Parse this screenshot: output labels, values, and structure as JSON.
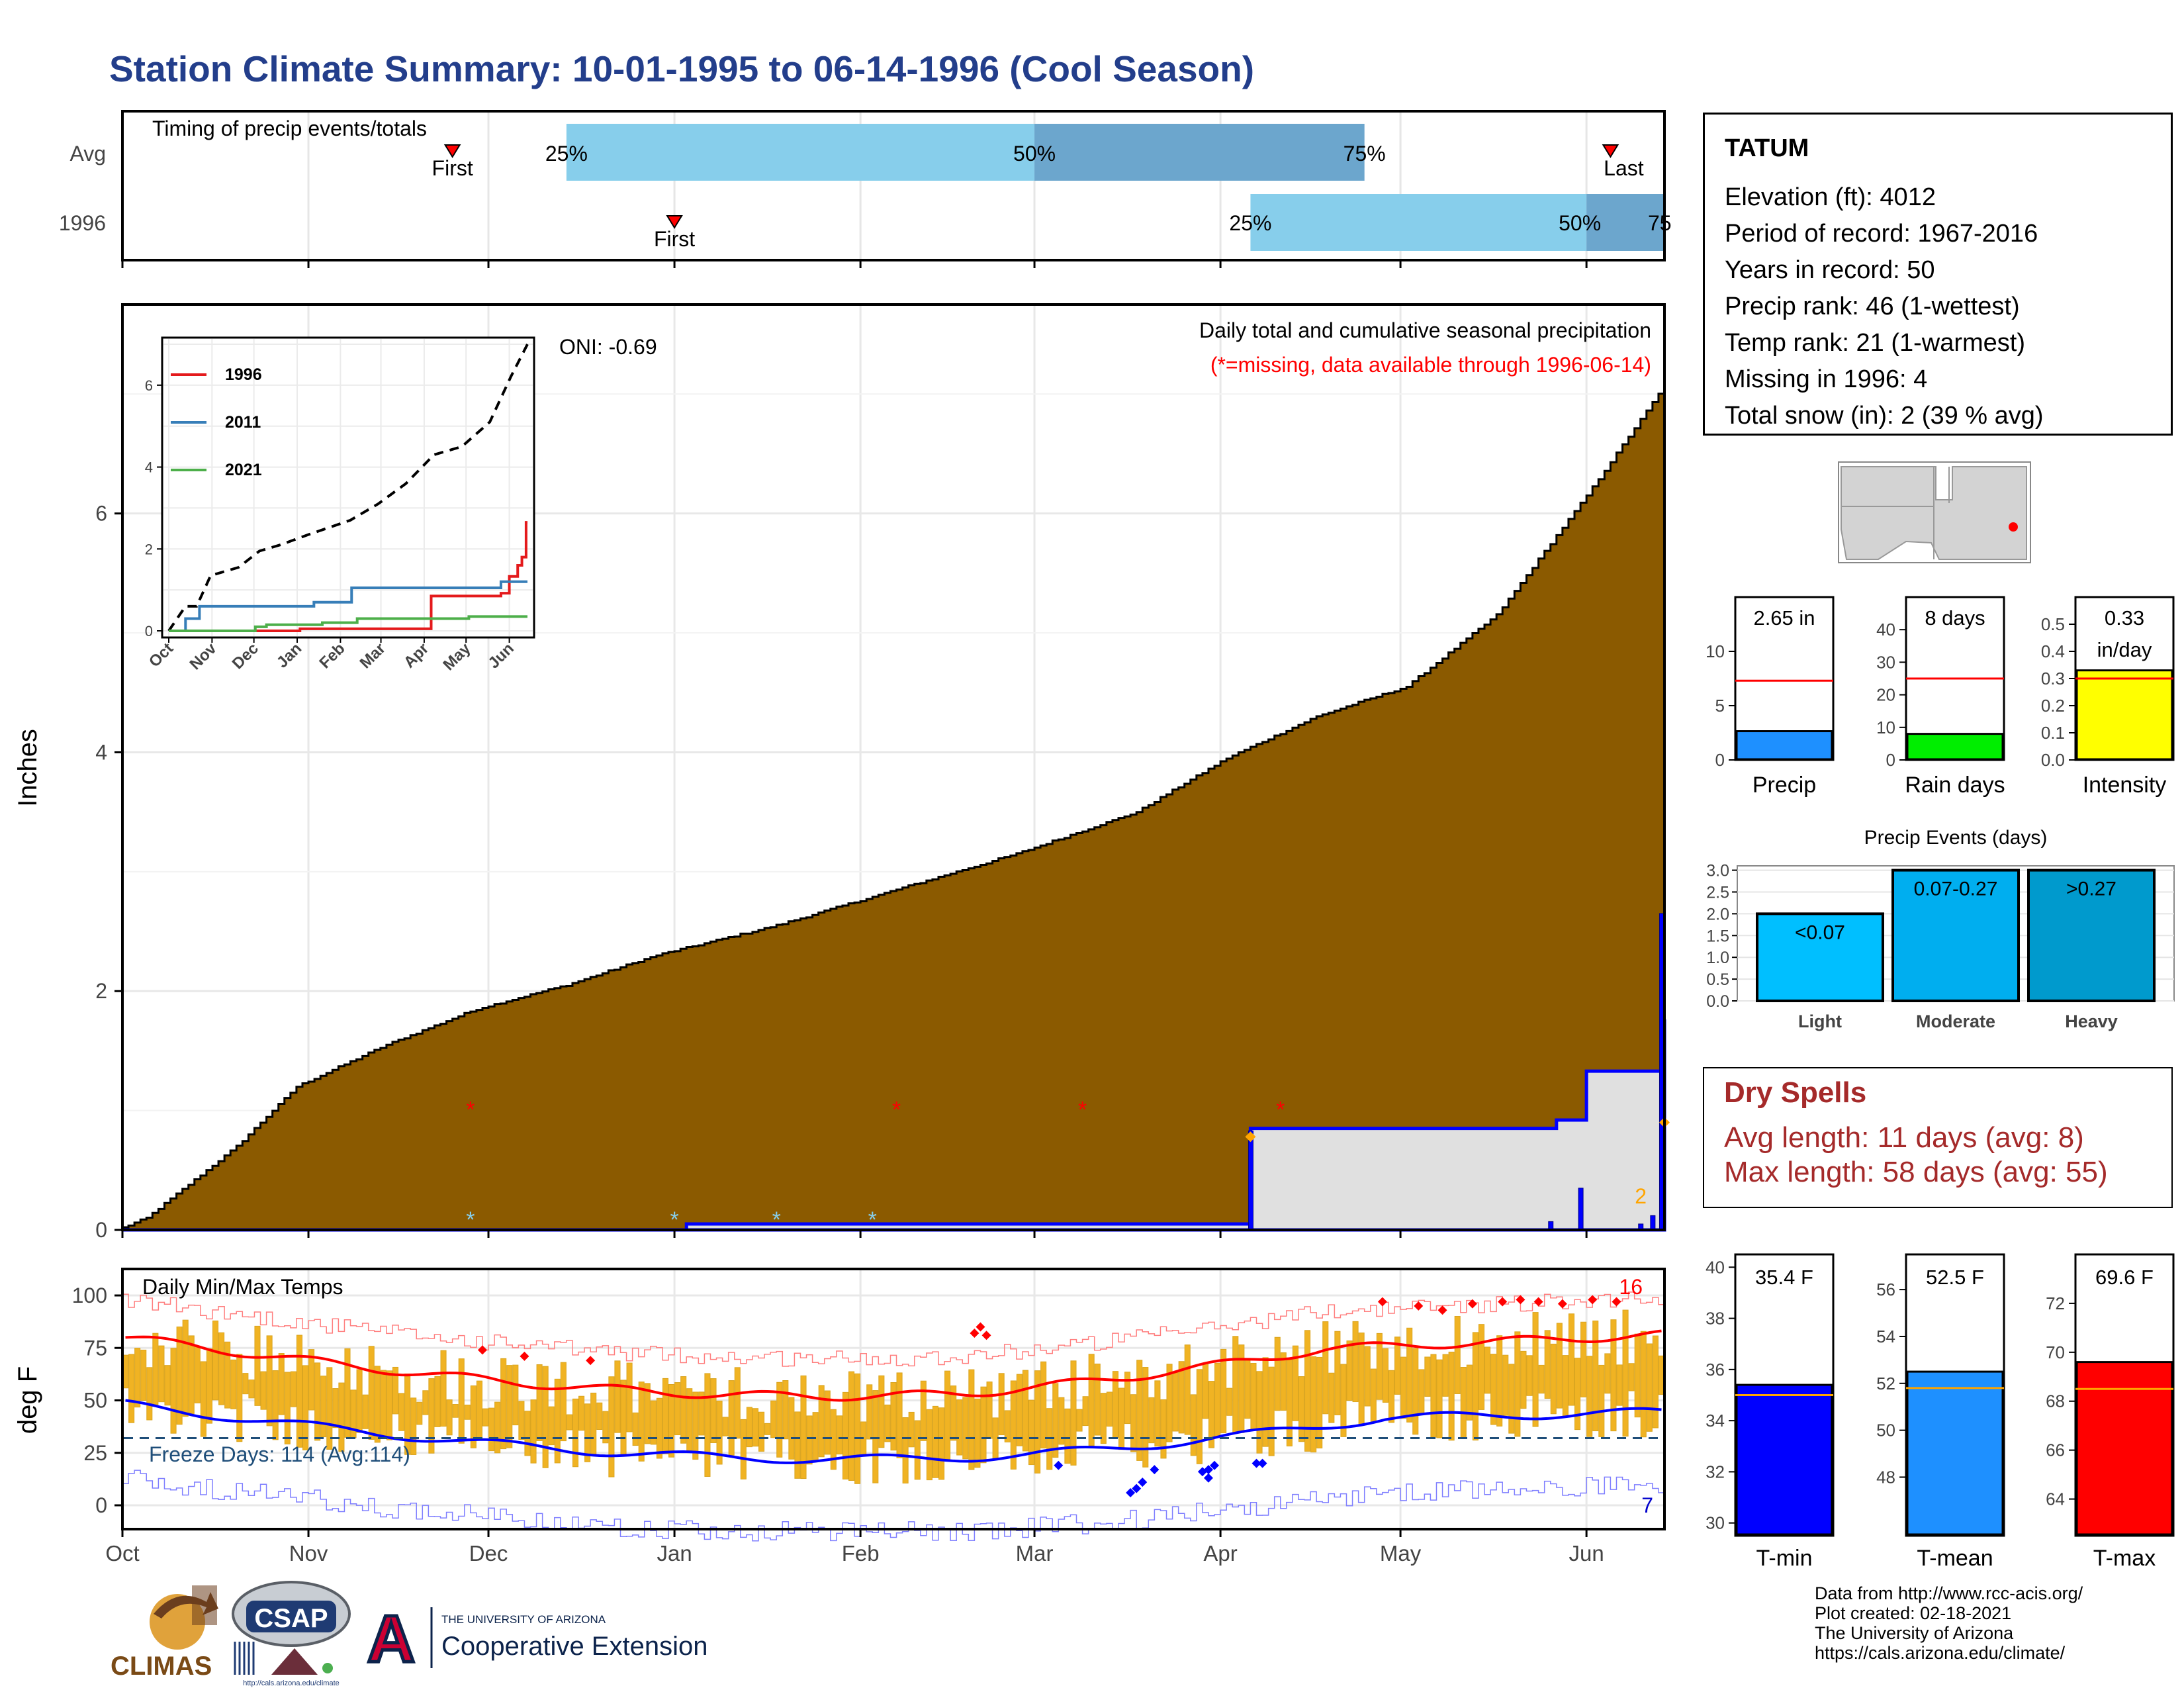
{
  "title": "Station Climate Summary: 10-01-1995 to 06-14-1996 (Cool Season)",
  "timing": {
    "label": "Timing of precip events/totals",
    "rows": [
      "Avg",
      "1996"
    ],
    "first_label": "First",
    "last_label": "Last",
    "pct_labels": [
      "25%",
      "50%",
      "75%"
    ],
    "partial_75": "75",
    "avg": {
      "first": "1995-11-25",
      "p25": "1995-12-14",
      "p50": "1996-03-01",
      "p75": "1996-04-25",
      "last": "1996-06-05"
    },
    "y1996": {
      "first": "1996-01-01",
      "p25": "1996-04-06",
      "p50": "1996-06-01",
      "p75": "1996-06-14"
    }
  },
  "main_panel": {
    "ylabel": "Inches",
    "yticks": [
      "0",
      "2",
      "4",
      "6"
    ],
    "oni": "ONI: -0.69",
    "caption": "Daily total and cumulative seasonal precipitation",
    "missing_note": "(*=missing, data available through 1996-06-14)",
    "snow_label": "2",
    "colors": {
      "cumulative_avg": "#8B5A00",
      "cumulative_1996": "#0000FF",
      "fill_1996": "#E0E0E0"
    }
  },
  "inset": {
    "xticks": [
      "Oct",
      "Nov",
      "Dec",
      "Jan",
      "Feb",
      "Mar",
      "Apr",
      "May",
      "Jun"
    ],
    "yticks": [
      "0",
      "2",
      "4",
      "6"
    ],
    "legend": [
      {
        "name": "1996",
        "color": "#E41A1C"
      },
      {
        "name": "2011",
        "color": "#377EB8"
      },
      {
        "name": "2021",
        "color": "#4DAF4A"
      }
    ]
  },
  "temp_panel": {
    "ylabel": "deg F",
    "title": "Daily Min/Max Temps",
    "yticks": [
      "0",
      "25",
      "50",
      "75",
      "100"
    ],
    "freeze_label": "Freeze Days: 114 (Avg:114)",
    "record_high_count": "16",
    "record_low_count": "7",
    "xticks": [
      "Oct",
      "Nov",
      "Dec",
      "Jan",
      "Feb",
      "Mar",
      "Apr",
      "May",
      "Jun"
    ]
  },
  "station": {
    "name": "TATUM",
    "lines": [
      "Elevation (ft): 4012",
      "Period of record: 1967-2016",
      "Years in record: 50",
      "Precip rank: 46 (1-wettest)",
      "Temp rank: 21 (1-warmest)",
      "Missing in 1996: 4",
      "Total snow (in): 2 (39 % avg)"
    ]
  },
  "mini_bars": [
    {
      "label": "Precip",
      "value_text": "2.65 in",
      "value": 2.65,
      "avg": 7.3,
      "max": 15,
      "ticks": [
        "0",
        "5",
        "10"
      ],
      "color": "#1E90FF"
    },
    {
      "label": "Rain days",
      "value_text": "8 days",
      "value": 8,
      "avg": 25,
      "max": 50,
      "ticks": [
        "0",
        "10",
        "20",
        "30",
        "40"
      ],
      "color": "#00EE00"
    },
    {
      "label": "Intensity",
      "value_text": "0.33",
      "value_text2": "in/day",
      "value": 0.33,
      "avg": 0.3,
      "max": 0.6,
      "ticks": [
        "0.0",
        "0.1",
        "0.2",
        "0.3",
        "0.4",
        "0.5"
      ],
      "color": "#FFFF00"
    }
  ],
  "precip_events": {
    "title": "Precip Events (days)",
    "yticks": [
      "0.0",
      "0.5",
      "1.0",
      "1.5",
      "2.0",
      "2.5",
      "3.0"
    ],
    "bars": [
      {
        "label": "Light",
        "range": "<0.07",
        "value": 2,
        "color": "#00BFFF"
      },
      {
        "label": "Moderate",
        "range": "0.07-0.27",
        "value": 3,
        "color": "#00AEEF"
      },
      {
        "label": "Heavy",
        "range": ">0.27",
        "value": 3,
        "color": "#009ACD"
      }
    ]
  },
  "dry_spells": {
    "title": "Dry Spells",
    "avg_line": "Avg length: 11 days (avg: 8)",
    "max_line": "Max length: 58 days (avg: 55)"
  },
  "temp_bars": [
    {
      "label": "T-min",
      "value_text": "35.4 F",
      "value": 35.4,
      "avg": 35.0,
      "min": 29.5,
      "max": 40.5,
      "ticks": [
        "30",
        "32",
        "34",
        "36",
        "38",
        "40"
      ],
      "color": "#0000FF"
    },
    {
      "label": "T-mean",
      "value_text": "52.5 F",
      "value": 52.5,
      "avg": 51.8,
      "min": 45.5,
      "max": 57.5,
      "ticks": [
        "48",
        "50",
        "52",
        "54",
        "56"
      ],
      "color": "#1E90FF"
    },
    {
      "label": "T-max",
      "value_text": "69.6 F",
      "value": 69.6,
      "avg": 68.5,
      "min": 62.5,
      "max": 74.0,
      "ticks": [
        "64",
        "66",
        "68",
        "70",
        "72"
      ],
      "color": "#FF0000"
    }
  ],
  "credits": [
    "Data from http://www.rcc-acis.org/",
    "Plot created: 02-18-2021",
    "The University of Arizona",
    "https://cals.arizona.edu/climate/"
  ],
  "logos": {
    "climas": "CLIMAS",
    "csap": "CSAP",
    "csap_url": "http://cals.arizona.edu/climate",
    "ua_small": "THE UNIVERSITY OF ARIZONA",
    "ua_big": "Cooperative Extension",
    "ua_letter": "A"
  }
}
